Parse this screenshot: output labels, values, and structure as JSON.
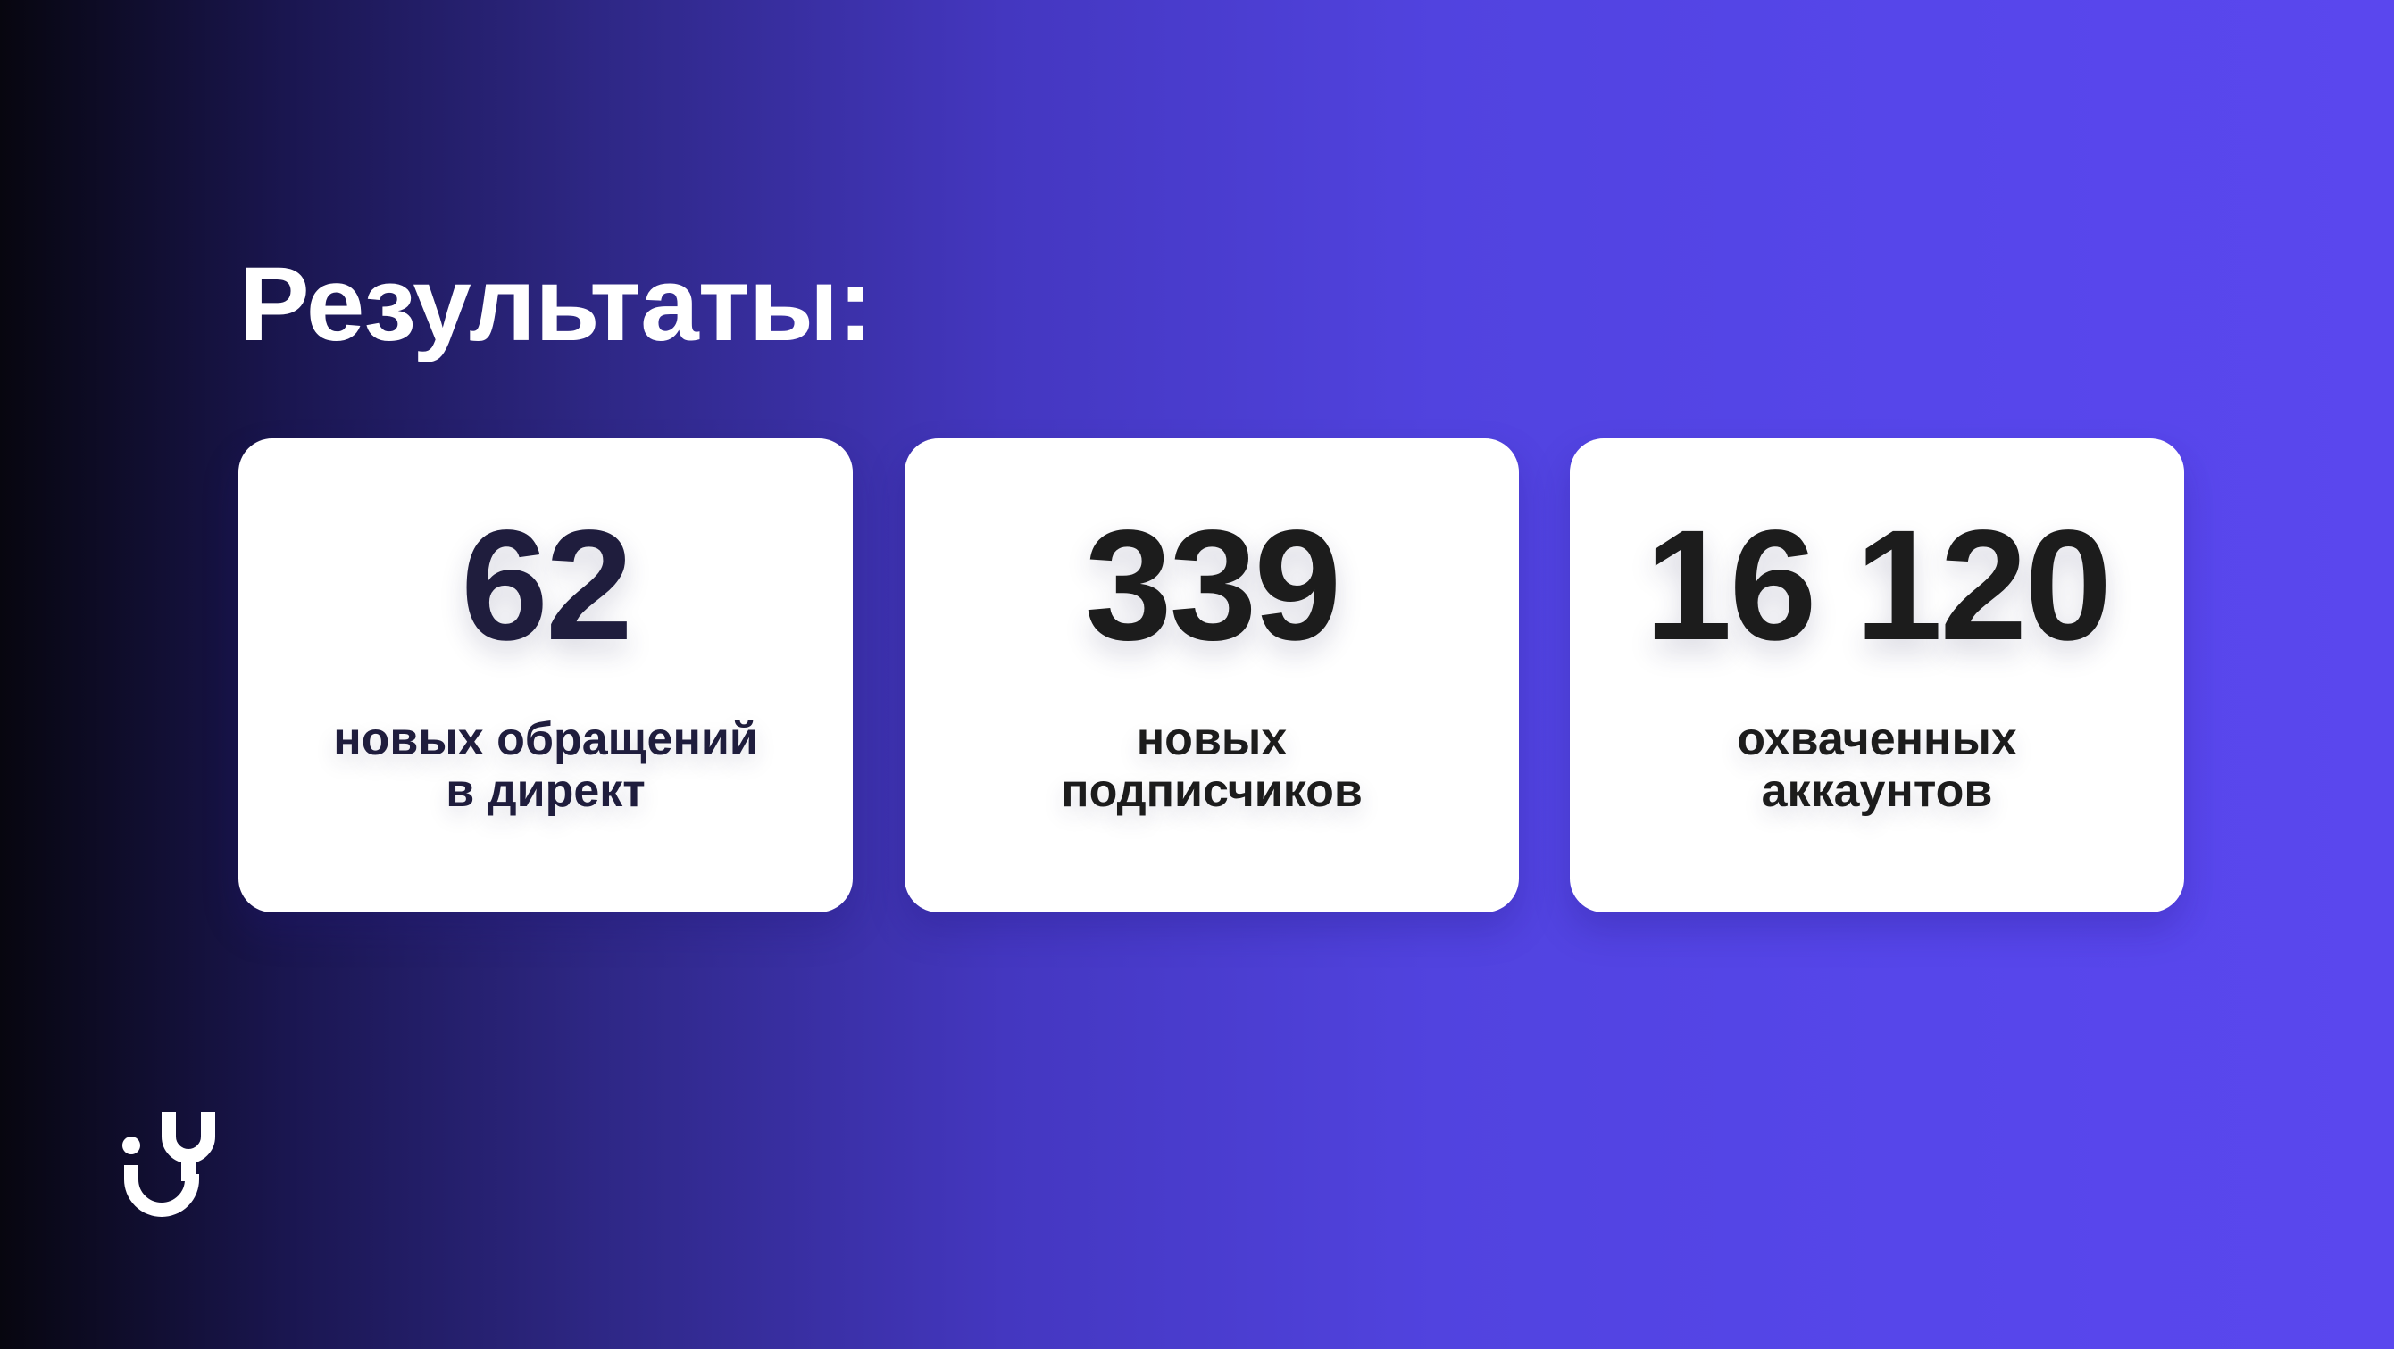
{
  "title": "Результаты:",
  "cards": [
    {
      "value": "62",
      "label_line1": "новых обращений",
      "label_line2": "в директ",
      "color": "#1f1d3d"
    },
    {
      "value": "339",
      "label_line1": "новых",
      "label_line2": "подписчиков",
      "color": "#1c1c1c"
    },
    {
      "value": "16 120",
      "label_line1": "охваченных",
      "label_line2": "аккаунтов",
      "color": "#1c1c1c"
    }
  ],
  "logo": {
    "icon": "brand-logo-icon"
  },
  "colors": {
    "bg_left": "#07060f",
    "bg_right": "#5a47ee"
  }
}
